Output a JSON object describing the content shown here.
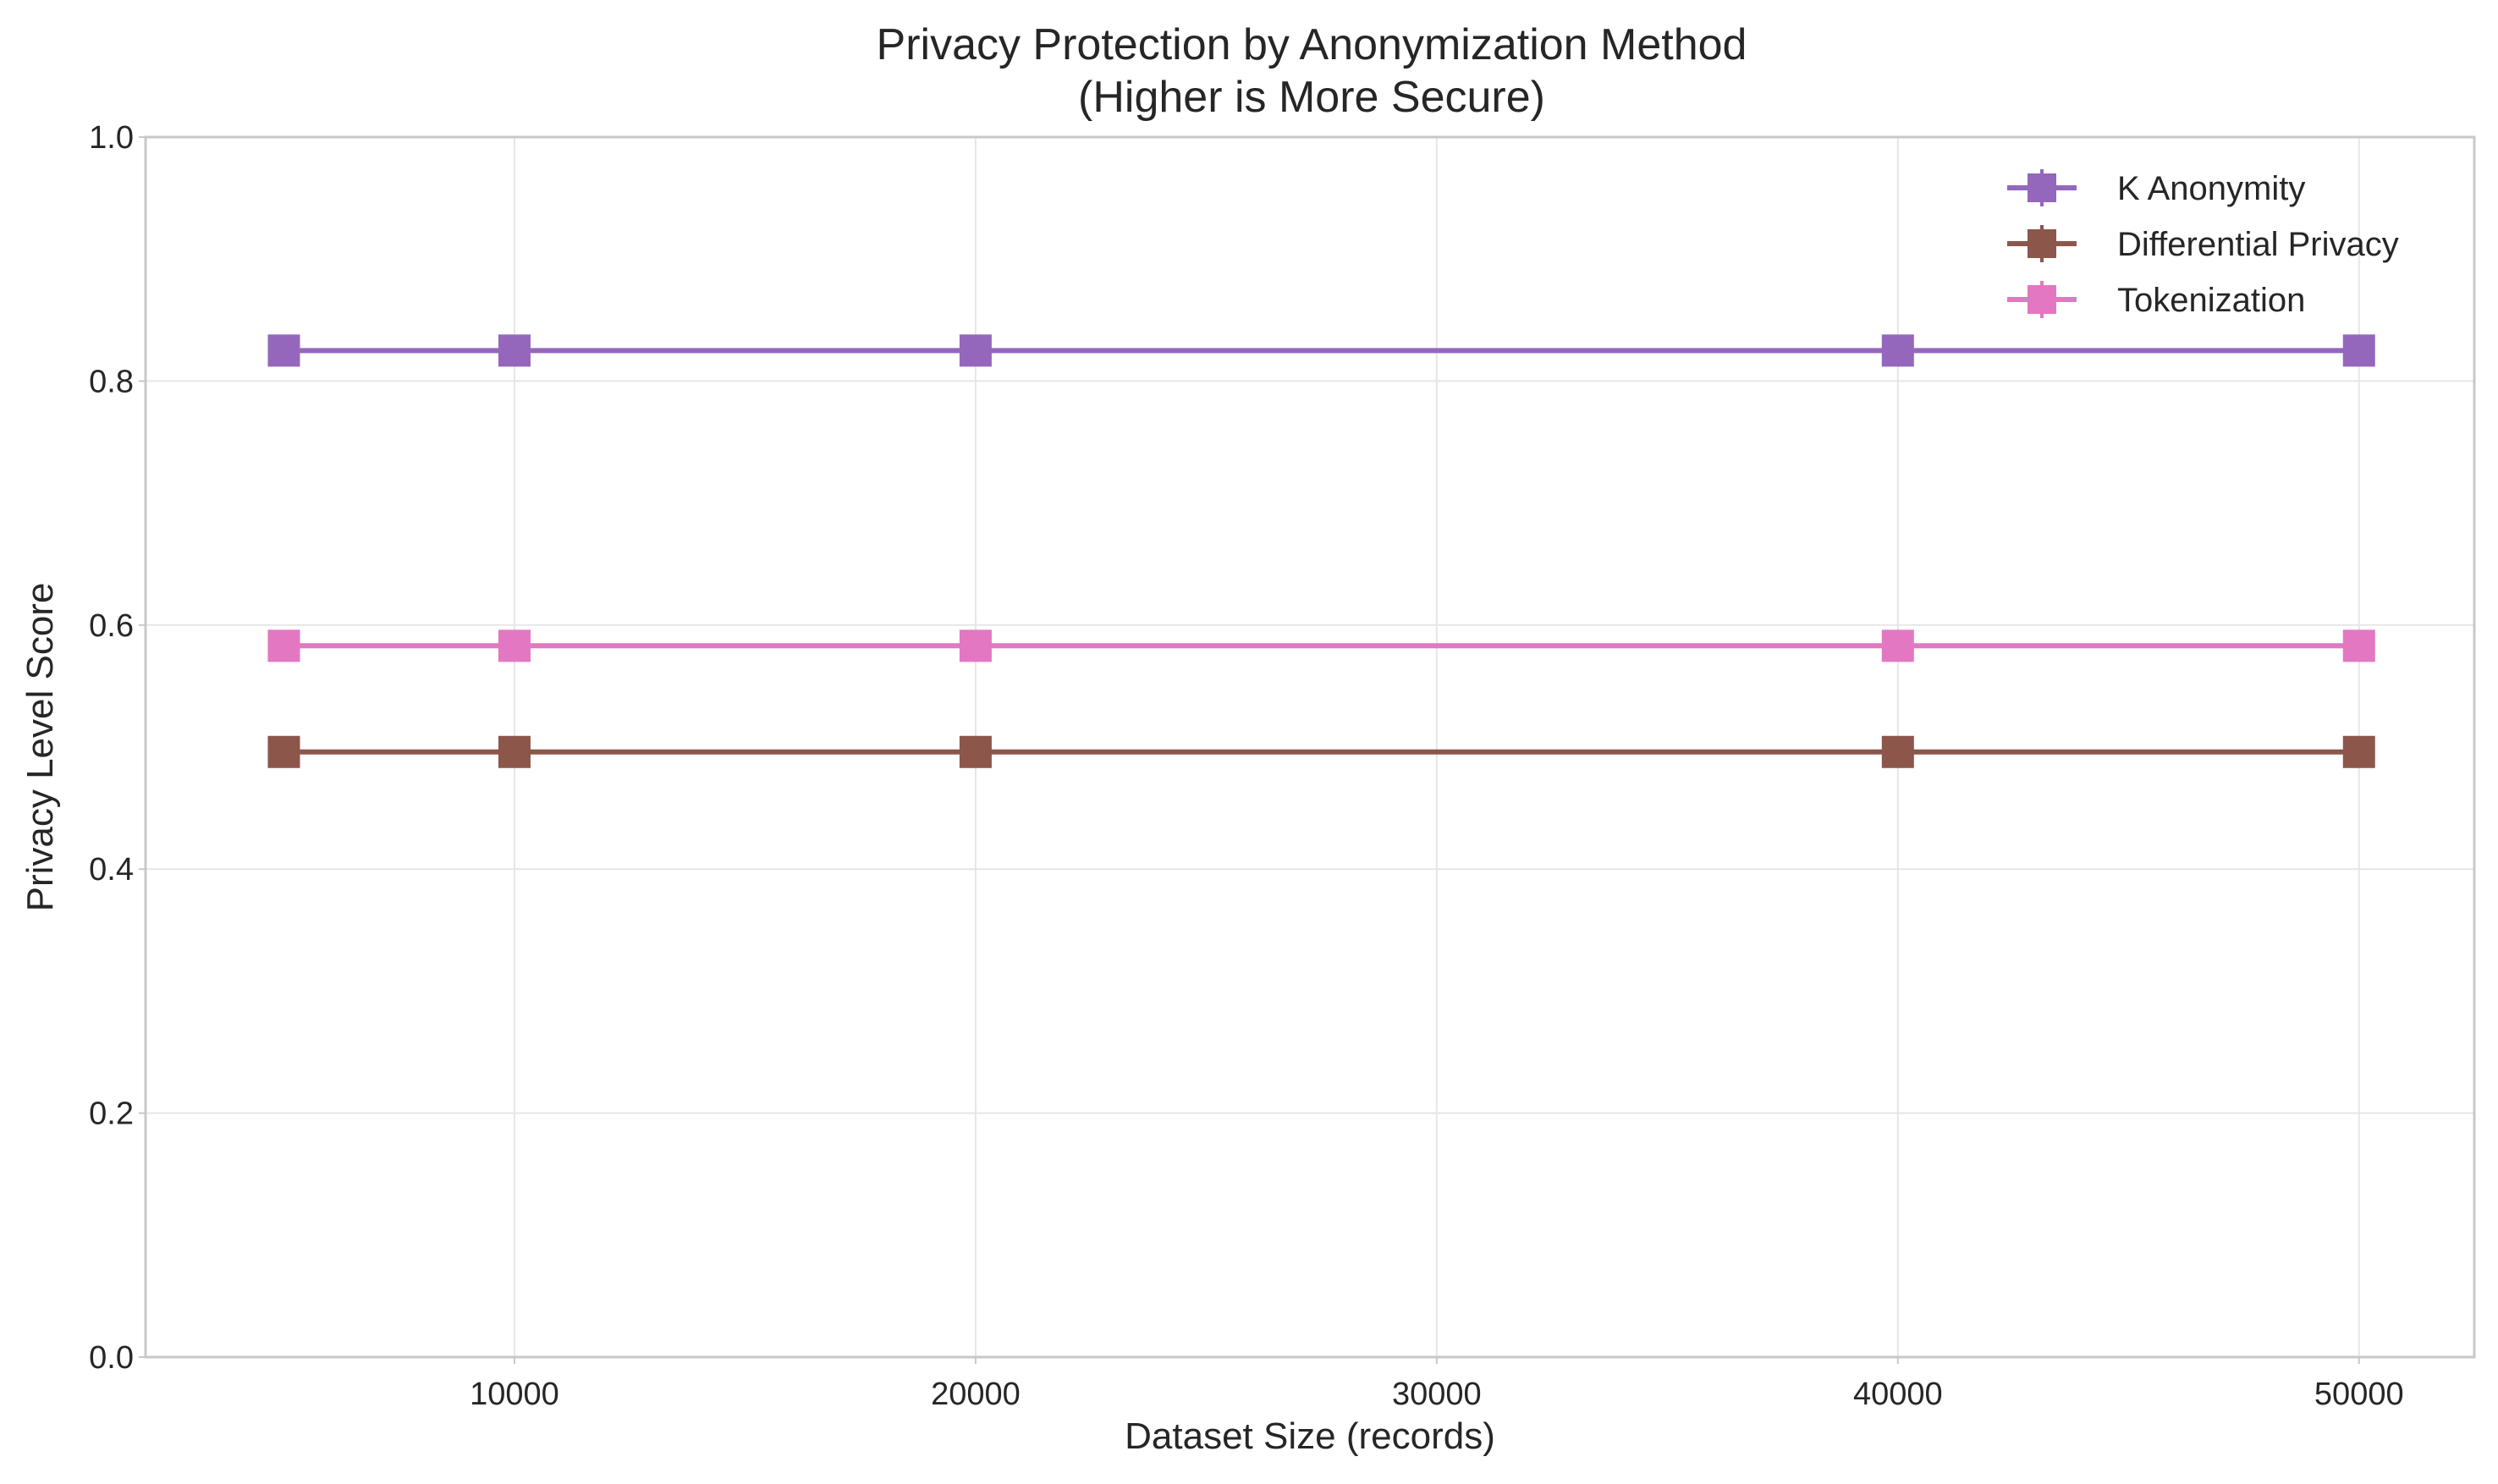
{
  "chart_data": {
    "type": "line",
    "title": "Privacy Protection by Anonymization Method",
    "subtitle": "(Higher is More Secure)",
    "xlabel": "Dataset Size (records)",
    "ylabel": "Privacy Level Score",
    "xlim": [
      2000,
      52500
    ],
    "ylim": [
      0,
      1.0
    ],
    "xticks": [
      10000,
      20000,
      30000,
      40000,
      50000
    ],
    "yticks": [
      0.0,
      0.2,
      0.4,
      0.6,
      0.8,
      1.0
    ],
    "x": [
      5000,
      10000,
      20000,
      40000,
      50000
    ],
    "grid": true,
    "legend_position": "top-right",
    "series": [
      {
        "name": "K Anonymity",
        "color": "#9467bd",
        "marker": "square",
        "values": [
          0.825,
          0.825,
          0.825,
          0.825,
          0.825
        ]
      },
      {
        "name": "Differential Privacy",
        "color": "#8c564b",
        "marker": "square",
        "values": [
          0.496,
          0.496,
          0.496,
          0.496,
          0.496
        ]
      },
      {
        "name": "Tokenization",
        "color": "#e377c2",
        "marker": "square",
        "values": [
          0.583,
          0.583,
          0.583,
          0.583,
          0.583
        ]
      }
    ]
  }
}
